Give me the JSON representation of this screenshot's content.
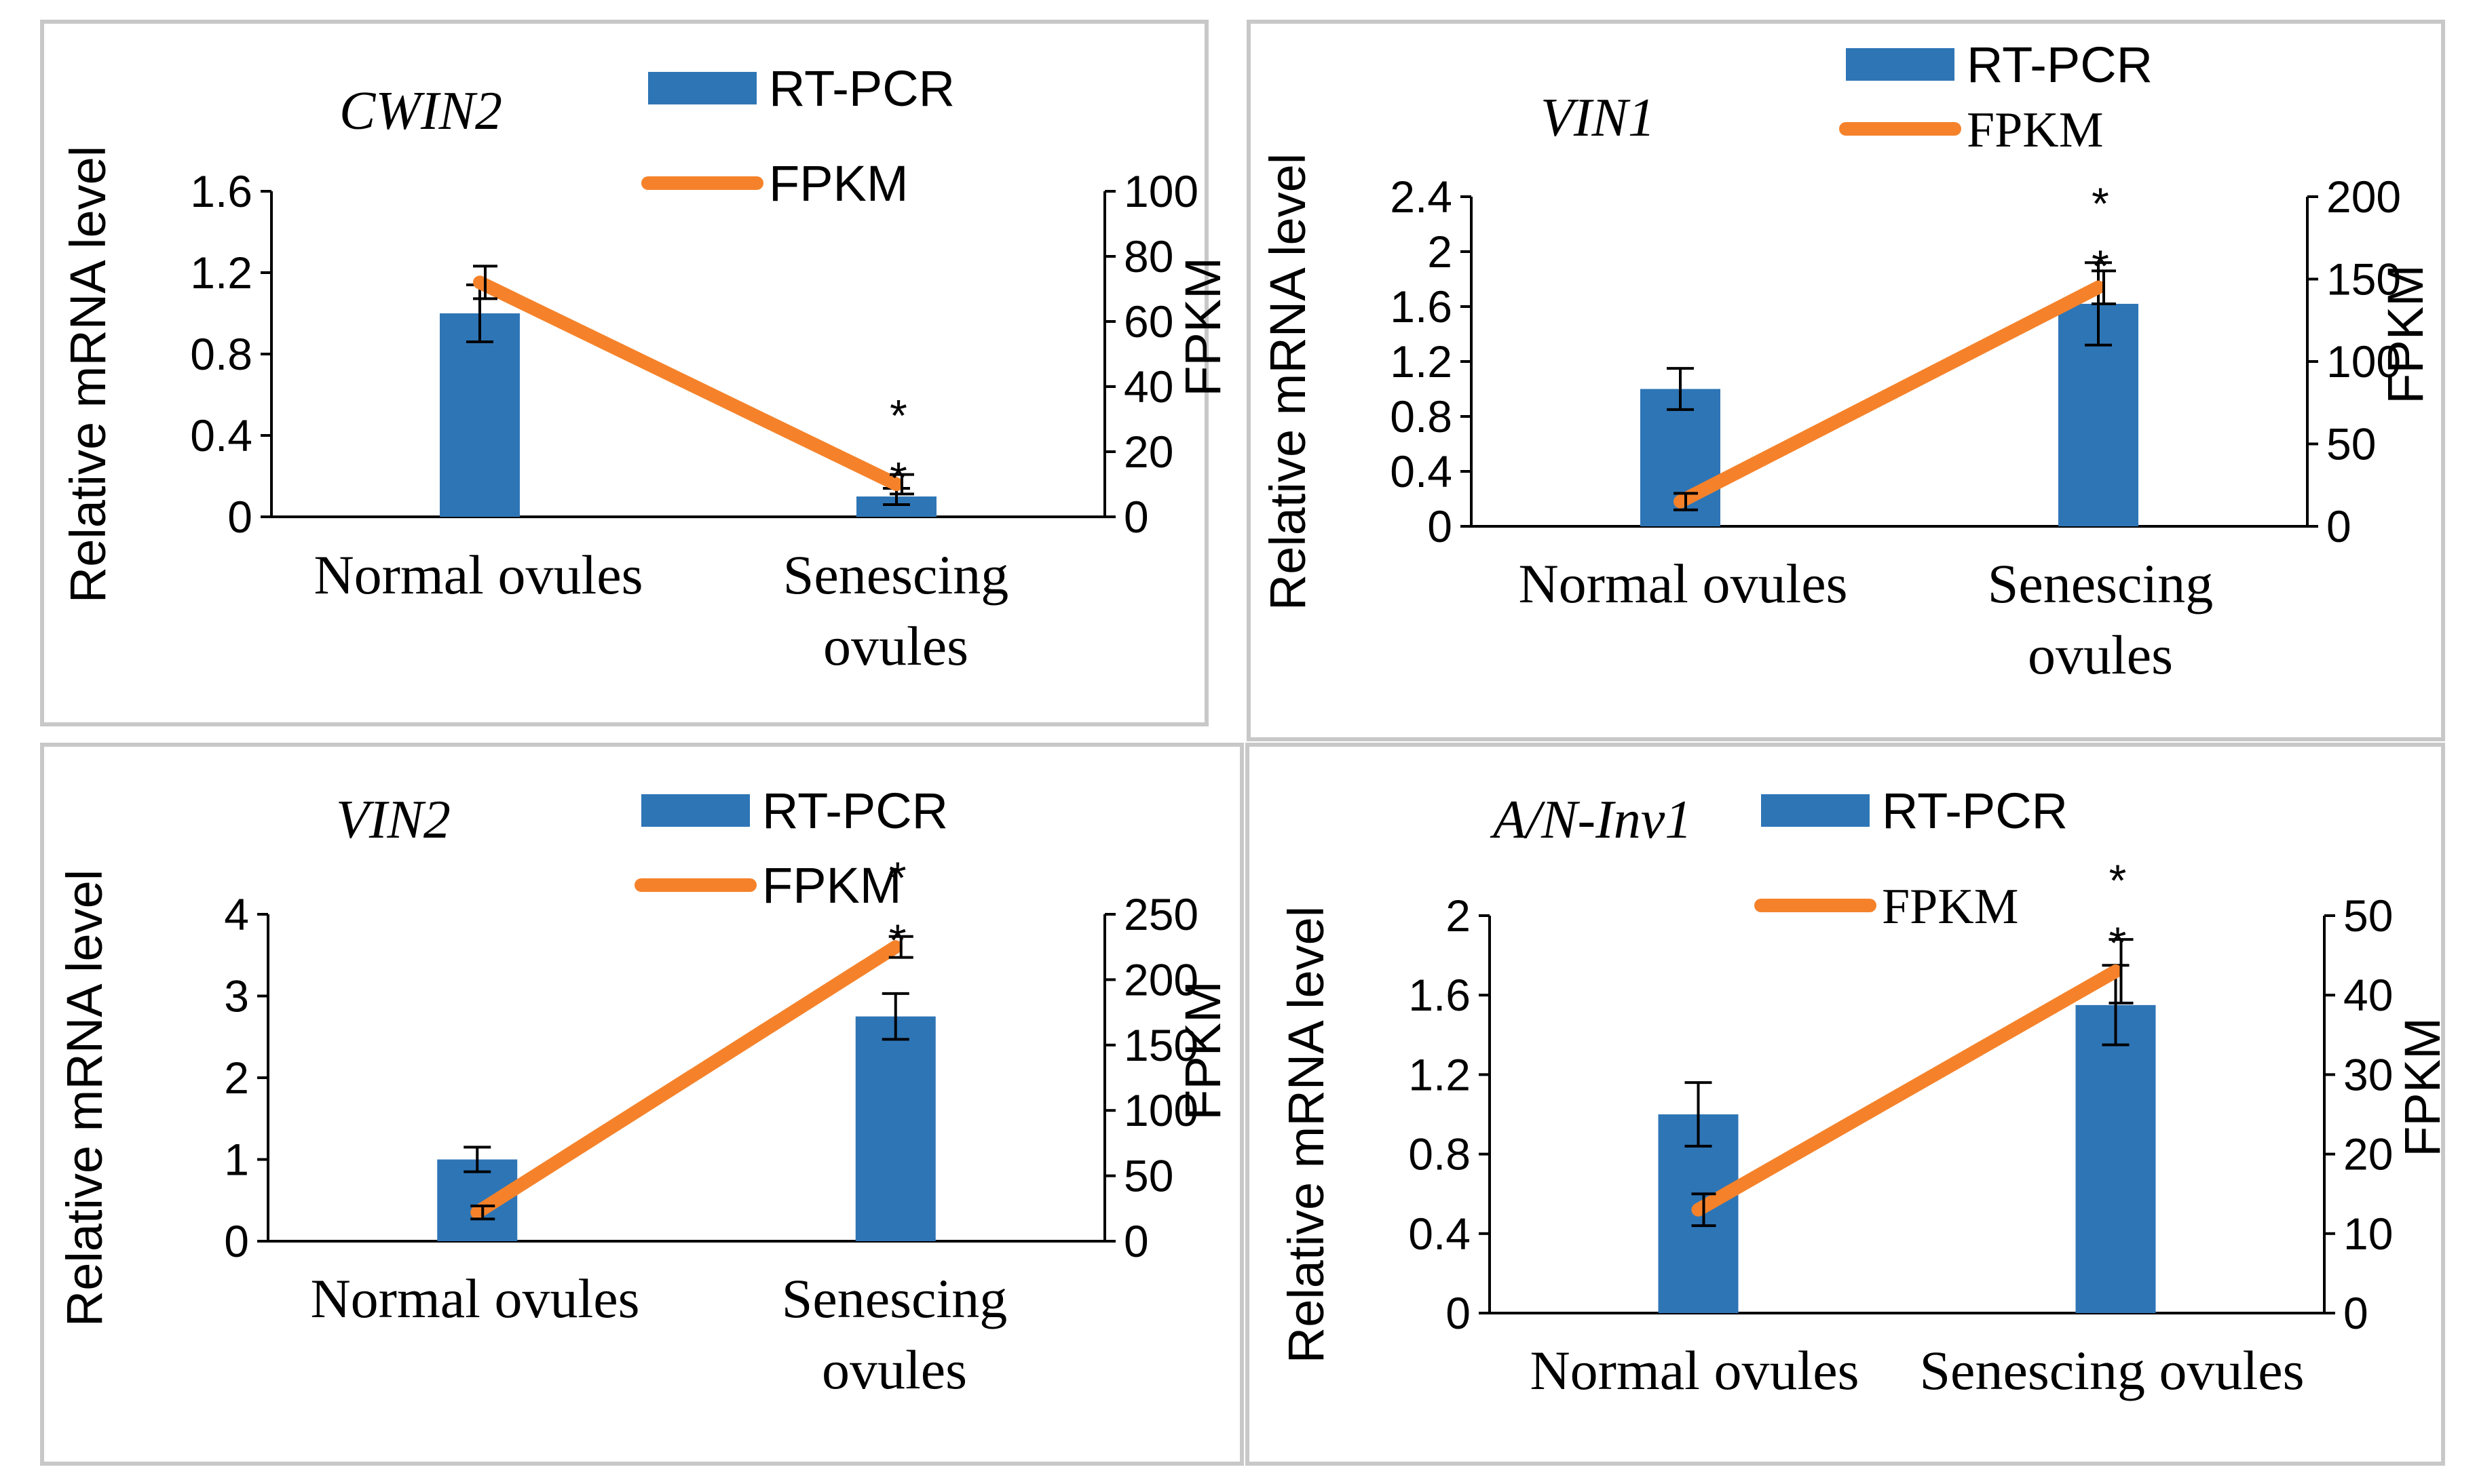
{
  "colors": {
    "bar": "#2E75B6",
    "line": "#F5822A",
    "frame": "#C8C8C8"
  },
  "legend": {
    "bar_label": "RT-PCR",
    "line_label": "FPKM"
  },
  "chart_data": [
    {
      "type": "bar",
      "title": "CWIN2",
      "categories": [
        "Normal ovules",
        "Senescing ovules"
      ],
      "category_lines": [
        [
          "Normal ovules"
        ],
        [
          "Senescing",
          "ovules"
        ]
      ],
      "ylabel": "Relative mRNA level",
      "y2label": "FPKM",
      "ylim": [
        0,
        1.6
      ],
      "yticks": [
        "0",
        "0.4",
        "0.8",
        "1.2",
        "1.6"
      ],
      "y2lim": [
        0,
        100
      ],
      "y2ticks": [
        "0",
        "20",
        "40",
        "60",
        "80",
        "100"
      ],
      "series": [
        {
          "name": "RT-PCR",
          "values": [
            1.0,
            0.1
          ],
          "errors": [
            0.14,
            0.04
          ]
        },
        {
          "name": "FPKM",
          "values": [
            72,
            10
          ],
          "errors": [
            5,
            3
          ],
          "axis": "secondary"
        }
      ],
      "significance": [
        "",
        "*\n*"
      ]
    },
    {
      "type": "bar",
      "title": "VIN1",
      "categories": [
        "Normal ovules",
        "Senescing ovules"
      ],
      "category_lines": [
        [
          "Normal ovules"
        ],
        [
          "Senescing",
          "ovules"
        ]
      ],
      "ylabel": "Relative mRNA level",
      "y2label": "FPKM",
      "ylim": [
        0,
        2.4
      ],
      "yticks": [
        "0",
        "0.4",
        "0.8",
        "1.2",
        "1.6",
        "2",
        "2.4"
      ],
      "y2lim": [
        0,
        200
      ],
      "y2ticks": [
        "0",
        "50",
        "100",
        "150",
        "200"
      ],
      "series": [
        {
          "name": "RT-PCR",
          "values": [
            1.0,
            1.62
          ],
          "errors": [
            0.15,
            0.3
          ]
        },
        {
          "name": "FPKM",
          "values": [
            15,
            145
          ],
          "errors": [
            5,
            10
          ],
          "axis": "secondary"
        }
      ],
      "significance": [
        "",
        "*\n*"
      ]
    },
    {
      "type": "bar",
      "title": "VIN2",
      "categories": [
        "Normal ovules",
        "Senescing ovules"
      ],
      "category_lines": [
        [
          "Normal ovules"
        ],
        [
          "Senescing",
          "ovules"
        ]
      ],
      "ylabel": "Relative mRNA level",
      "y2label": "FPKM",
      "ylim": [
        0,
        4
      ],
      "yticks": [
        "0",
        "1",
        "2",
        "3",
        "4"
      ],
      "y2lim": [
        0,
        250
      ],
      "y2ticks": [
        "0",
        "50",
        "100",
        "150",
        "200",
        "250"
      ],
      "series": [
        {
          "name": "RT-PCR",
          "values": [
            1.0,
            2.75
          ],
          "errors": [
            0.15,
            0.28
          ]
        },
        {
          "name": "FPKM",
          "values": [
            22,
            225
          ],
          "errors": [
            5,
            8
          ],
          "axis": "secondary"
        }
      ],
      "significance": [
        "",
        "*\n*"
      ]
    },
    {
      "type": "bar",
      "title": "A/N-Inv1",
      "categories": [
        "Normal ovules",
        "Senescing ovules"
      ],
      "category_lines": [
        [
          "Normal ovules"
        ],
        [
          "Senescing ovules"
        ]
      ],
      "ylabel": "Relative mRNA level",
      "y2label": "FPKM",
      "ylim": [
        0,
        2
      ],
      "yticks": [
        "0",
        "0.4",
        "0.8",
        "1.2",
        "1.6",
        "2"
      ],
      "y2lim": [
        0,
        50
      ],
      "y2ticks": [
        "0",
        "10",
        "20",
        "30",
        "40",
        "50"
      ],
      "series": [
        {
          "name": "RT-PCR",
          "values": [
            1.0,
            1.55
          ],
          "errors": [
            0.16,
            0.2
          ]
        },
        {
          "name": "FPKM",
          "values": [
            13,
            43
          ],
          "errors": [
            2,
            4
          ],
          "axis": "secondary"
        }
      ],
      "significance": [
        "",
        "*\n*"
      ]
    }
  ]
}
